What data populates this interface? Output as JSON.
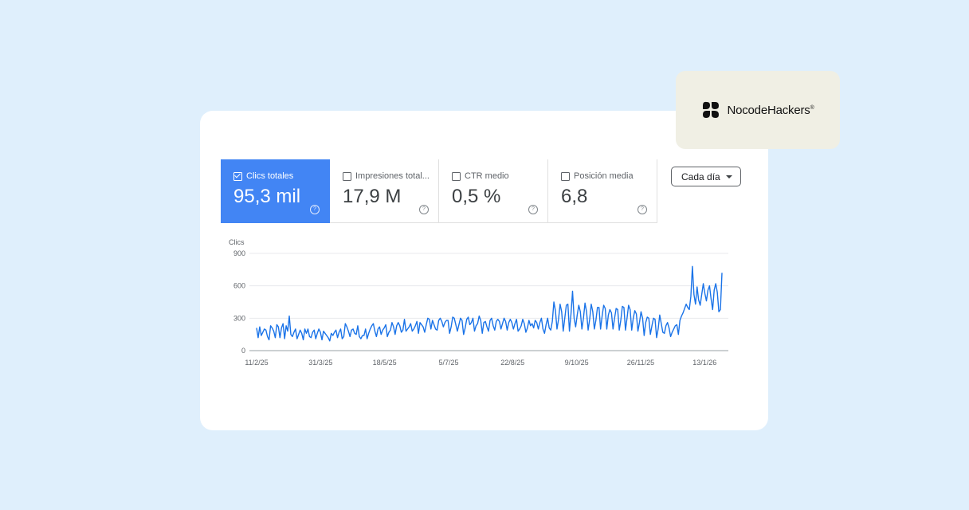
{
  "brand": {
    "name": "NocodeHackers",
    "registered": "®"
  },
  "metrics": [
    {
      "label": "Clics totales",
      "value": "95,3 mil",
      "active": true
    },
    {
      "label": "Impresiones total...",
      "value": "17,9 M",
      "active": false
    },
    {
      "label": "CTR medio",
      "value": "0,5 %",
      "active": false
    },
    {
      "label": "Posición media",
      "value": "6,8",
      "active": false
    }
  ],
  "help_icon": "?",
  "dropdown": {
    "label": "Cada día"
  },
  "colors": {
    "accent": "#4285f4",
    "line": "#1a73e8"
  },
  "chart_data": {
    "type": "line",
    "ylabel": "Clics",
    "ylim": [
      0,
      900
    ],
    "yticks": [
      "0",
      "300",
      "600",
      "900"
    ],
    "xticks": [
      "11/2/25",
      "31/3/25",
      "18/5/25",
      "5/7/25",
      "22/8/25",
      "9/10/25",
      "26/11/25",
      "13/1/26"
    ],
    "x_start": "2025-02-11",
    "x_end": "2026-01-26",
    "grid": true,
    "series": [
      {
        "values": [
          210,
          120,
          220,
          140,
          170,
          200,
          190,
          130,
          100,
          230,
          210,
          180,
          120,
          240,
          220,
          120,
          210,
          250,
          110,
          230,
          180,
          320,
          150,
          130,
          170,
          200,
          110,
          150,
          190,
          160,
          100,
          200,
          160,
          200,
          130,
          120,
          170,
          190,
          110,
          160,
          200,
          170,
          100,
          180,
          160,
          140,
          120,
          90,
          160,
          140,
          170,
          190,
          120,
          170,
          200,
          110,
          130,
          250,
          220,
          180,
          130,
          190,
          200,
          160,
          150,
          230,
          130,
          110,
          140,
          140,
          200,
          110,
          160,
          200,
          230,
          250,
          180,
          130,
          200,
          220,
          150,
          190,
          210,
          240,
          130,
          170,
          190,
          260,
          220,
          150,
          230,
          260,
          230,
          170,
          190,
          290,
          180,
          200,
          220,
          250,
          180,
          200,
          230,
          270,
          160,
          260,
          240,
          220,
          170,
          240,
          300,
          290,
          200,
          280,
          240,
          200,
          190,
          280,
          300,
          270,
          220,
          260,
          280,
          280,
          160,
          220,
          310,
          300,
          240,
          180,
          240,
          300,
          280,
          150,
          210,
          290,
          310,
          240,
          260,
          300,
          180,
          230,
          250,
          320,
          280,
          160,
          260,
          270,
          220,
          180,
          280,
          300,
          230,
          190,
          270,
          290,
          270,
          200,
          250,
          300,
          270,
          190,
          260,
          290,
          260,
          200,
          250,
          290,
          180,
          200,
          230,
          290,
          250,
          170,
          210,
          280,
          230,
          250,
          210,
          280,
          260,
          200,
          260,
          300,
          200,
          160,
          240,
          300,
          210,
          190,
          270,
          450,
          370,
          200,
          290,
          430,
          360,
          180,
          300,
          420,
          430,
          180,
          340,
          550,
          300,
          220,
          330,
          420,
          360,
          200,
          300,
          440,
          360,
          190,
          290,
          430,
          360,
          200,
          280,
          400,
          400,
          200,
          320,
          420,
          390,
          200,
          330,
          380,
          350,
          200,
          300,
          390,
          380,
          190,
          280,
          410,
          400,
          190,
          300,
          420,
          380,
          190,
          300,
          370,
          340,
          180,
          260,
          360,
          300,
          140,
          260,
          310,
          300,
          150,
          230,
          300,
          290,
          120,
          200,
          330,
          250,
          170,
          160,
          230,
          260,
          210,
          130,
          170,
          200,
          230,
          240,
          150,
          280,
          320,
          350,
          390,
          430,
          400,
          380,
          500,
          780,
          520,
          430,
          590,
          470,
          420,
          520,
          620,
          530,
          460,
          560,
          600,
          480,
          380,
          560,
          620,
          540,
          360,
          380,
          720
        ]
      }
    ]
  }
}
